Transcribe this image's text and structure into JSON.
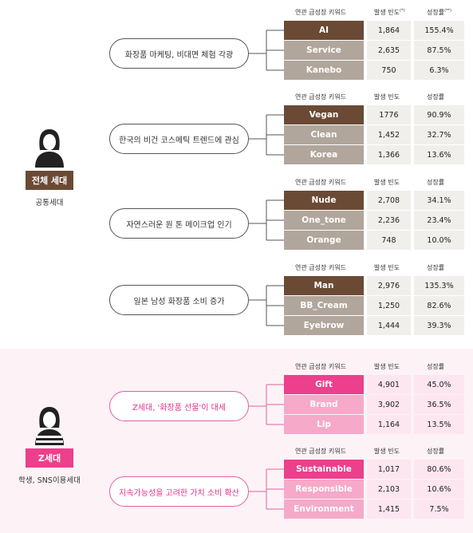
{
  "colors": {
    "brown_dark": "#6b4a35",
    "brown_light": "#b1a69b",
    "pink_dark": "#ec3f8c",
    "pink_light": "#f6a9c9"
  },
  "personas": [
    {
      "badge": "전체 세대",
      "sub": "공통세대",
      "icon": "woman-avatar-icon"
    },
    {
      "badge": "Z세대",
      "sub": "학생, SNS이용세대",
      "icon": "woman-avatar-striped-icon"
    }
  ],
  "headers": {
    "keyword": "연관 급성장 키워드",
    "freq": "발생 빈도",
    "freq_mark": "(*)",
    "rate": "성장률",
    "rate_mark": "(**)"
  },
  "groups": [
    {
      "theme": "화장품 마케팅, 비대면 체험 각광",
      "rows": [
        {
          "kw": "AI",
          "freq": "1,864",
          "rate": "155.4%"
        },
        {
          "kw": "Service",
          "freq": "2,635",
          "rate": "87.5%"
        },
        {
          "kw": "Kanebo",
          "freq": "750",
          "rate": "6.3%"
        }
      ]
    },
    {
      "theme": "한국의 비건 코스메틱 트렌드에 관심",
      "rows": [
        {
          "kw": "Vegan",
          "freq": "1776",
          "rate": "90.9%"
        },
        {
          "kw": "Clean",
          "freq": "1,452",
          "rate": "32.7%"
        },
        {
          "kw": "Korea",
          "freq": "1,366",
          "rate": "13.6%"
        }
      ]
    },
    {
      "theme": "자연스러운 원 톤 메이크업 인기",
      "rows": [
        {
          "kw": "Nude",
          "freq": "2,708",
          "rate": "34.1%"
        },
        {
          "kw": "One_tone",
          "freq": "2,236",
          "rate": "23.4%"
        },
        {
          "kw": "Orange",
          "freq": "748",
          "rate": "10.0%"
        }
      ]
    },
    {
      "theme": "일본 남성 화장품 소비 증가",
      "rows": [
        {
          "kw": "Man",
          "freq": "2,976",
          "rate": "135.3%"
        },
        {
          "kw": "BB_Cream",
          "freq": "1,250",
          "rate": "82.6%"
        },
        {
          "kw": "Eyebrow",
          "freq": "1,444",
          "rate": "39.3%"
        }
      ]
    },
    {
      "theme": "Z세대, '화장품 선물'이 대세",
      "rows": [
        {
          "kw": "Gift",
          "freq": "4,901",
          "rate": "45.0%"
        },
        {
          "kw": "Brand",
          "freq": "3,902",
          "rate": "36.5%"
        },
        {
          "kw": "Lip",
          "freq": "1,164",
          "rate": "13.5%"
        }
      ]
    },
    {
      "theme": "지속가능성을 고려한 가치 소비 확산",
      "rows": [
        {
          "kw": "Sustainable",
          "freq": "1,017",
          "rate": "80.6%"
        },
        {
          "kw": "Responsible",
          "freq": "2,103",
          "rate": "10.6%"
        },
        {
          "kw": "Environment",
          "freq": "1,415",
          "rate": "7.5%"
        }
      ]
    }
  ]
}
